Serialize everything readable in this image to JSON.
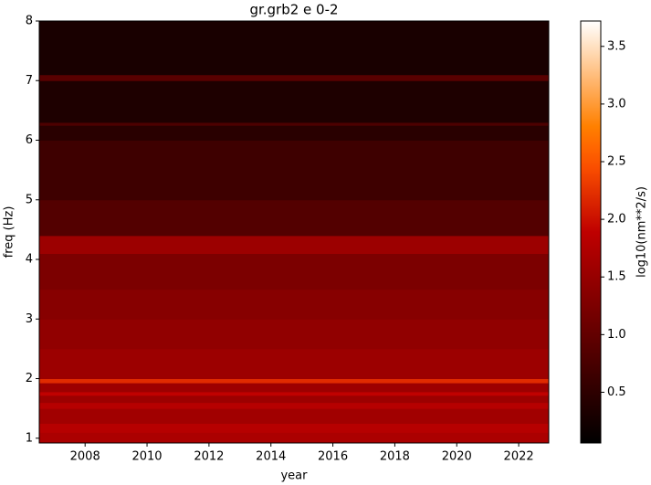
{
  "chart_data": {
    "type": "heatmap",
    "title": "gr.grb2 e 0-2",
    "x_label": "year",
    "y_label": "freq (Hz)",
    "colorbar_label": "log10(nm**2/s)",
    "colormap": "gist_heat",
    "xlim": [
      2006.52,
      2022.97
    ],
    "xticks": [
      2008,
      2010,
      2012,
      2014,
      2016,
      2018,
      2020,
      2022
    ],
    "ylim": [
      0.92,
      8
    ],
    "yticks": [
      1,
      2,
      3,
      4,
      5,
      6,
      7,
      8
    ],
    "clim": [
      0.06,
      3.72
    ],
    "cticks": [
      0.5,
      1.0,
      1.5,
      2.0,
      2.5,
      3.0,
      3.5
    ],
    "ybins": [
      0.92,
      1.1,
      1.25,
      1.5,
      1.6,
      1.72,
      1.78,
      1.93,
      2.0,
      2.5,
      3.0,
      3.5,
      4.1,
      4.4,
      5.0,
      6.0,
      6.25,
      6.3,
      7.0,
      7.1,
      8
    ],
    "values": [
      1.7,
      1.8,
      1.6,
      1.8,
      1.55,
      1.9,
      1.55,
      2.2,
      1.55,
      1.45,
      1.35,
      1.25,
      1.55,
      0.85,
      0.65,
      0.45,
      0.8,
      0.35,
      0.9,
      0.3
    ]
  }
}
